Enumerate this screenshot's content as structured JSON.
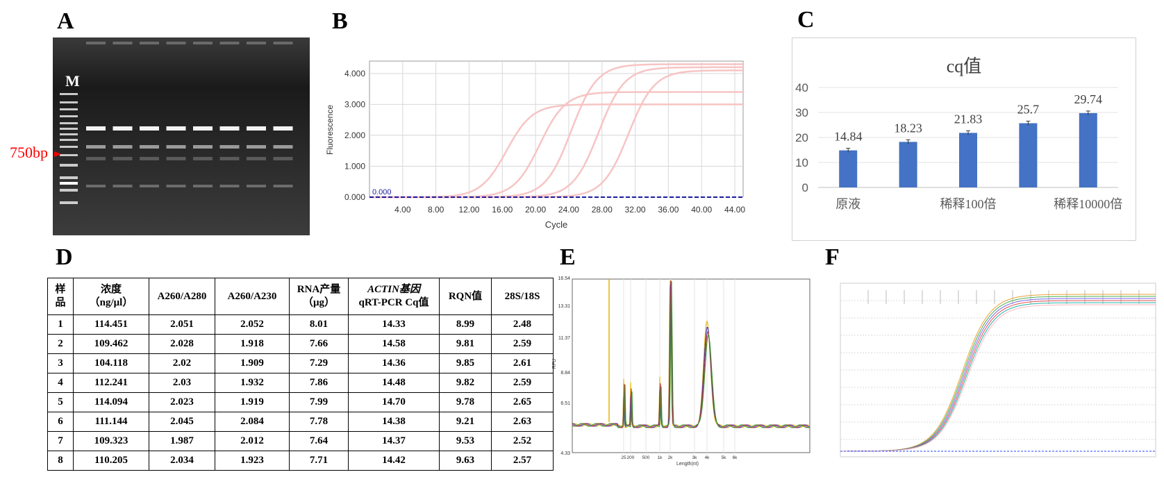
{
  "labels": {
    "A": "A",
    "B": "B",
    "C": "C",
    "D": "D",
    "E": "E",
    "F": "F"
  },
  "gel": {
    "marker_label": "M",
    "band_label": "750bp",
    "arrow_color": "#ff0000",
    "lane_count": 8
  },
  "chart_data": [
    {
      "panel": "B",
      "type": "line",
      "title": "",
      "xlabel": "Cycle",
      "ylabel": "Fluorescence",
      "xlim": [
        0,
        45
      ],
      "ylim": [
        0,
        4.4
      ],
      "xticks": [
        "4.00",
        "8.00",
        "12.00",
        "16.00",
        "20.00",
        "24.00",
        "28.00",
        "32.00",
        "36.00",
        "40.00",
        "44.00"
      ],
      "yticks": [
        "0.000",
        "1.000",
        "2.000",
        "3.000",
        "4.000"
      ],
      "threshold": {
        "label": "0.000",
        "value": 0,
        "color": "#1a1aa0"
      },
      "curve_color": "#f7c4c4",
      "series": [
        {
          "midpoint": 16.5,
          "plateau": 3.0
        },
        {
          "midpoint": 20.5,
          "plateau": 3.4
        },
        {
          "midpoint": 24.3,
          "plateau": 4.3
        },
        {
          "midpoint": 27.6,
          "plateau": 4.2
        },
        {
          "midpoint": 31.2,
          "plateau": 4.1
        }
      ],
      "grid": true
    },
    {
      "panel": "C",
      "type": "bar",
      "title": "cq值",
      "categories": [
        "原液",
        "",
        "稀释100倍",
        "",
        "稀释10000倍"
      ],
      "values": [
        14.84,
        18.23,
        21.83,
        25.7,
        29.74
      ],
      "data_labels": [
        "14.84",
        "18.23",
        "21.83",
        "25.7",
        "29.74"
      ],
      "yticks": [
        "0",
        "10",
        "20",
        "30",
        "40"
      ],
      "ylim": [
        0,
        40
      ],
      "bar_color": "#4472c4",
      "error_bars": true,
      "grid": true
    },
    {
      "panel": "E",
      "type": "line",
      "title": "",
      "xlabel": "Length(nt)",
      "ylabel": "RFU",
      "yticks": [
        "4.33",
        "6.51",
        "8.84",
        "11.37",
        "13.31",
        "16.54"
      ],
      "xticks": [
        "25",
        "200",
        "500",
        "1k",
        "2k",
        "3k",
        "4k",
        "5k",
        "6k"
      ],
      "series_colors": [
        "#e8b400",
        "#3333cc",
        "#cc3333",
        "#339933"
      ]
    },
    {
      "panel": "F",
      "type": "line",
      "title": "",
      "series_colors": [
        "#e8a030",
        "#4caf50",
        "#7b68ee",
        "#e05050",
        "#20b2aa",
        "#ffb6c1"
      ]
    }
  ],
  "table": {
    "headers": [
      {
        "lines": [
          "样",
          "品"
        ]
      },
      {
        "lines": [
          "浓度",
          "（ng/μl）"
        ]
      },
      {
        "lines": [
          "A260/A280"
        ]
      },
      {
        "lines": [
          "A260/A230"
        ]
      },
      {
        "lines": [
          "RNA产量",
          "（μg）"
        ]
      },
      {
        "lines": [
          "ACTIN基因",
          "qRT-PCR Cq值"
        ]
      },
      {
        "lines": [
          "RQN值"
        ]
      },
      {
        "lines": [
          "28S/18S"
        ]
      }
    ],
    "rows": [
      [
        "1",
        "114.451",
        "2.051",
        "2.052",
        "8.01",
        "14.33",
        "8.99",
        "2.48"
      ],
      [
        "2",
        "109.462",
        "2.028",
        "1.918",
        "7.66",
        "14.58",
        "9.81",
        "2.59"
      ],
      [
        "3",
        "104.118",
        "2.02",
        "1.909",
        "7.29",
        "14.36",
        "9.85",
        "2.61"
      ],
      [
        "4",
        "112.241",
        "2.03",
        "1.932",
        "7.86",
        "14.48",
        "9.82",
        "2.59"
      ],
      [
        "5",
        "114.094",
        "2.023",
        "1.919",
        "7.99",
        "14.70",
        "9.78",
        "2.65"
      ],
      [
        "6",
        "111.144",
        "2.045",
        "2.084",
        "7.78",
        "14.38",
        "9.21",
        "2.63"
      ],
      [
        "7",
        "109.323",
        "1.987",
        "2.012",
        "7.64",
        "14.37",
        "9.53",
        "2.52"
      ],
      [
        "8",
        "110.205",
        "2.034",
        "1.923",
        "7.71",
        "14.42",
        "9.63",
        "2.57"
      ]
    ]
  }
}
